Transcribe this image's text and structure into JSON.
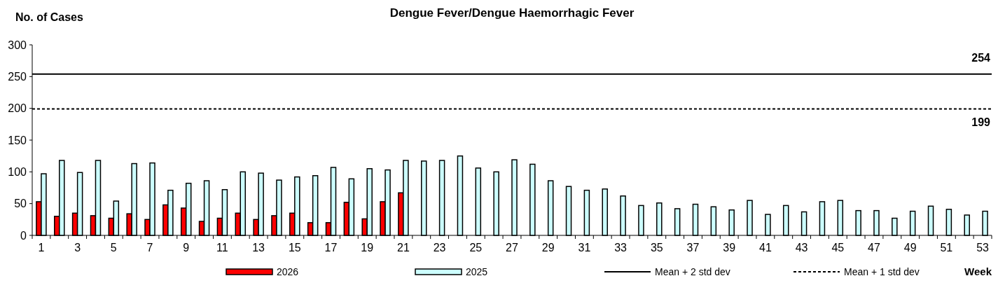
{
  "chart_data": {
    "type": "bar",
    "title": "Dengue Fever/Dengue Haemorrhagic Fever",
    "ylabel": "No. of Cases",
    "xlabel": "Week",
    "x": [
      1,
      2,
      3,
      4,
      5,
      6,
      7,
      8,
      9,
      10,
      11,
      12,
      13,
      14,
      15,
      16,
      17,
      18,
      19,
      20,
      21,
      22,
      23,
      24,
      25,
      26,
      27,
      28,
      29,
      30,
      31,
      32,
      33,
      34,
      35,
      36,
      37,
      38,
      39,
      40,
      41,
      42,
      43,
      44,
      45,
      46,
      47,
      48,
      49,
      50,
      51,
      52,
      53
    ],
    "xlim": [
      0.5,
      53.5
    ],
    "xticks": [
      1,
      3,
      5,
      7,
      9,
      11,
      13,
      15,
      17,
      19,
      21,
      23,
      25,
      27,
      29,
      31,
      33,
      35,
      37,
      39,
      41,
      43,
      45,
      47,
      49,
      51,
      53
    ],
    "series": [
      {
        "name": "2026",
        "color": "#ff0000",
        "values": [
          53,
          30,
          35,
          31,
          27,
          34,
          25,
          48,
          43,
          22,
          27,
          35,
          25,
          31,
          35,
          20,
          20,
          52,
          26,
          53,
          67,
          null,
          null,
          null,
          null,
          null,
          null,
          null,
          null,
          null,
          null,
          null,
          null,
          null,
          null,
          null,
          null,
          null,
          null,
          null,
          null,
          null,
          null,
          null,
          null,
          null,
          null,
          null,
          null,
          null,
          null,
          null,
          null
        ]
      },
      {
        "name": "2025",
        "color": "#ccffff",
        "values": [
          97,
          118,
          99,
          118,
          54,
          113,
          114,
          71,
          82,
          86,
          72,
          100,
          98,
          87,
          92,
          94,
          107,
          89,
          105,
          103,
          118,
          117,
          118,
          125,
          106,
          100,
          119,
          112,
          86,
          77,
          71,
          73,
          62,
          47,
          51,
          42,
          49,
          45,
          40,
          55,
          33,
          47,
          37,
          53,
          55,
          39,
          39,
          27,
          38,
          46,
          41,
          32,
          38
        ]
      }
    ],
    "ref_lines": [
      {
        "axis": "y",
        "value": 254,
        "label": "Mean + 2 std dev",
        "color": "#000000",
        "line_style": "solid"
      },
      {
        "axis": "y",
        "value": 199,
        "label": "Mean + 1 std dev",
        "color": "#000000",
        "line_style": "dashed"
      }
    ],
    "annotations": [
      {
        "text": "254",
        "x": 53,
        "y": 254
      },
      {
        "text": "199",
        "x": 53,
        "y": 199
      }
    ],
    "ylim": [
      0,
      300
    ],
    "yticks": [
      0,
      50,
      100,
      150,
      200,
      250,
      300
    ],
    "grid": false,
    "legend": "bottom"
  }
}
